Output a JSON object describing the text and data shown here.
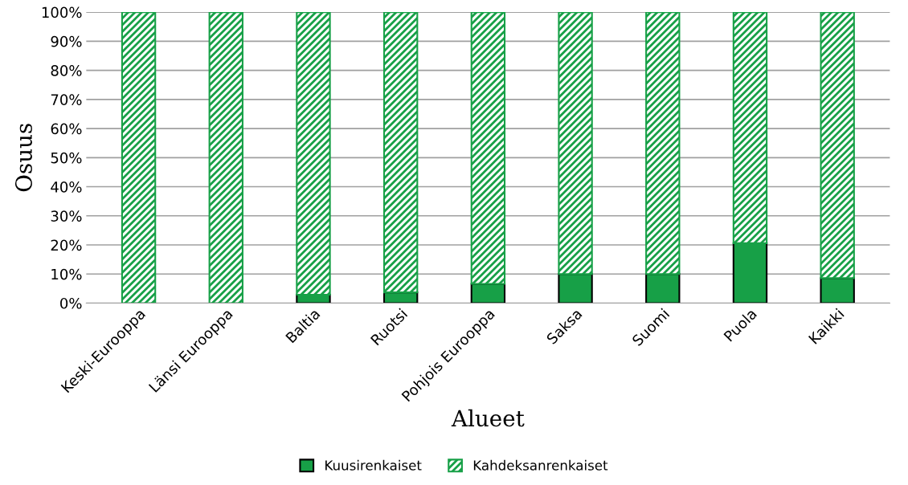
{
  "chart_data": {
    "type": "bar",
    "stacked": true,
    "xlabel": "Alueet",
    "ylabel": "Osuus",
    "categories": [
      "Keski-Eurooppa",
      "Länsi Eurooppa",
      "Baltia",
      "Ruotsi",
      "Pohjois Eurooppa",
      "Saksa",
      "Suomi",
      "Puola",
      "Kaikki"
    ],
    "series": [
      {
        "name": "Kuusirenkaiset",
        "color": "#17a047",
        "values": [
          0,
          0,
          2.9,
          3.7,
          6.6,
          10,
          10,
          20.6,
          8.6
        ]
      },
      {
        "name": "Kahdeksanrenkaiset",
        "color": "#17a047",
        "values": [
          100,
          100,
          97.1,
          96.3,
          93.4,
          90,
          90,
          79.4,
          91.4
        ]
      }
    ],
    "ylim": [
      0,
      100
    ],
    "yticks": [
      {
        "value": 0,
        "label": "0%"
      },
      {
        "value": 10,
        "label": "10%"
      },
      {
        "value": 20,
        "label": "20%"
      },
      {
        "value": 30,
        "label": "30%"
      },
      {
        "value": 40,
        "label": "40%"
      },
      {
        "value": 50,
        "label": "50%"
      },
      {
        "value": 60,
        "label": "60%"
      },
      {
        "value": 70,
        "label": "70%"
      },
      {
        "value": 80,
        "label": "80%"
      },
      {
        "value": 90,
        "label": "90%"
      },
      {
        "value": 100,
        "label": "100%"
      }
    ],
    "grid": "y",
    "legend": "bottom"
  }
}
